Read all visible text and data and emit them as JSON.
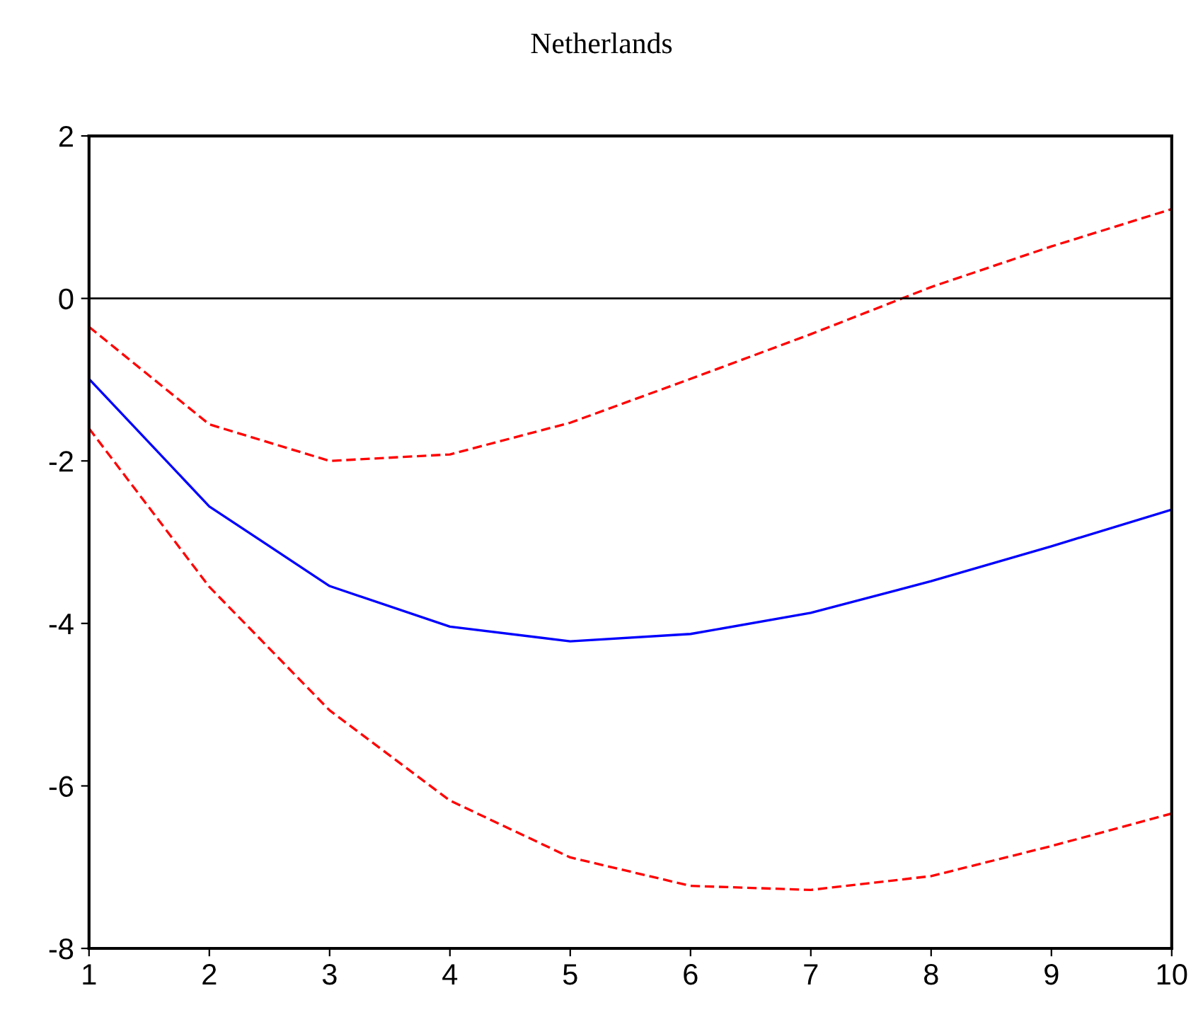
{
  "chart_data": {
    "type": "line",
    "title": "Netherlands",
    "x": [
      1,
      2,
      3,
      4,
      5,
      6,
      7,
      8,
      9,
      10
    ],
    "series": [
      {
        "color": "#0000ff",
        "line_style": "solid",
        "values": [
          -0.99,
          -2.56,
          -3.54,
          -4.04,
          -4.22,
          -4.13,
          -3.87,
          -3.48,
          -3.05,
          -2.6
        ]
      },
      {
        "color": "#ff0000",
        "line_style": "dashed",
        "values": [
          -0.35,
          -1.55,
          -2.0,
          -1.92,
          -1.53,
          -0.99,
          -0.44,
          0.14,
          0.64,
          1.1
        ]
      },
      {
        "color": "#ff0000",
        "line_style": "dashed",
        "values": [
          -1.6,
          -3.55,
          -5.07,
          -6.18,
          -6.88,
          -7.23,
          -7.28,
          -7.11,
          -6.74,
          -6.34
        ]
      }
    ],
    "xlim": [
      1,
      10
    ],
    "xticks": [
      1,
      2,
      3,
      4,
      5,
      6,
      7,
      8,
      9,
      10
    ],
    "ylim": [
      -8,
      2
    ],
    "yticks": [
      -8,
      -6,
      -4,
      -2,
      0,
      2
    ],
    "ref_lines": [
      {
        "axis": "y",
        "value": 0,
        "color": "#000000"
      }
    ],
    "grid": false,
    "legend": false
  }
}
